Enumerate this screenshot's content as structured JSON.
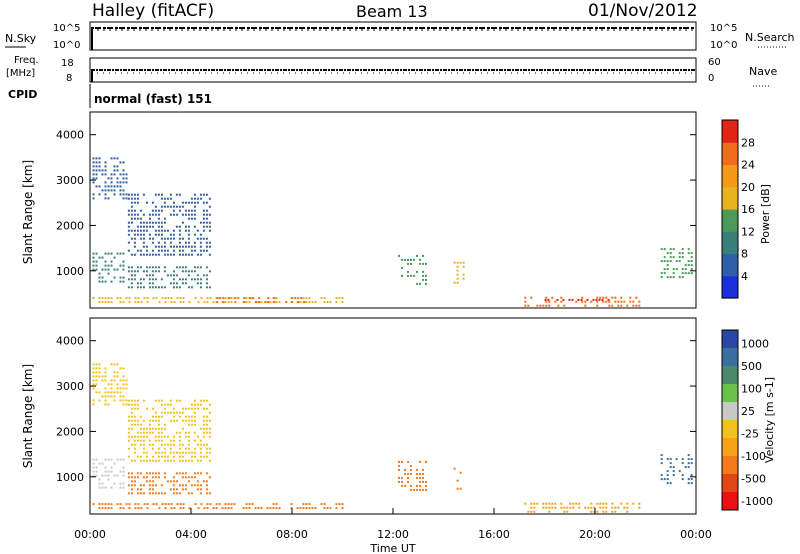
{
  "header": {
    "station": "Halley (fitACF)",
    "beam": "Beam 13",
    "date": "01/Nov/2012"
  },
  "status_panels": {
    "nsky_label": "N.Sky",
    "nsearch_label": "N.Search",
    "nsky_ticks": [
      "10^5",
      "10^0"
    ],
    "nsearch_ticks": [
      "10^5",
      "10^0"
    ],
    "freq_label_1": "Freq.",
    "freq_label_2": "[MHz]",
    "freq_ticks": [
      "18",
      "8"
    ],
    "nave_label": "Nave",
    "nave_ticks": [
      "60",
      "0"
    ],
    "cpid_label": "CPID",
    "cpid_value": "normal (fast) 151"
  },
  "colors": {
    "power_scale": [
      "#1a2fdc",
      "#2e5fa8",
      "#3a7f7a",
      "#4a9a5a",
      "#e8b21e",
      "#f39a1a",
      "#f06d1d",
      "#e02416"
    ],
    "velocity_scale": [
      "#2c46a6",
      "#3a6fa0",
      "#4a8a6a",
      "#6ac24a",
      "#c8c8c8",
      "#f1c21c",
      "#f5a11a",
      "#f07a1c",
      "#e04717",
      "#e81010"
    ]
  },
  "chart_data": [
    {
      "type": "heatmap",
      "title": "",
      "xlabel": "",
      "ylabel": "Slant Range [km]",
      "xlim": [
        0,
        24
      ],
      "ylim": [
        180,
        4500
      ],
      "x_ticks": [],
      "y_ticks": [
        "1000",
        "2000",
        "3000",
        "4000"
      ],
      "y_tick_values": [
        1000,
        2000,
        3000,
        4000
      ],
      "colorbar": {
        "label": "Power [dB]",
        "ticks": [
          "4",
          "8",
          "12",
          "16",
          "20",
          "24",
          "28"
        ],
        "range": [
          0,
          32
        ]
      },
      "echo_regions": [
        {
          "x0": 0.1,
          "x1": 1.5,
          "y0": 2600,
          "y1": 3500,
          "value": 6
        },
        {
          "x0": 0.1,
          "x1": 1.4,
          "y0": 700,
          "y1": 1400,
          "value": 8
        },
        {
          "x0": 1.5,
          "x1": 4.8,
          "y0": 1300,
          "y1": 2700,
          "value": 7
        },
        {
          "x0": 1.5,
          "x1": 4.8,
          "y0": 600,
          "y1": 1100,
          "value": 10
        },
        {
          "x0": 0.1,
          "x1": 10.0,
          "y0": 250,
          "y1": 420,
          "value": 18
        },
        {
          "x0": 5.0,
          "x1": 8.5,
          "y0": 250,
          "y1": 420,
          "value": 24
        },
        {
          "x0": 12.2,
          "x1": 13.3,
          "y0": 700,
          "y1": 1350,
          "value": 14
        },
        {
          "x0": 14.4,
          "x1": 14.8,
          "y0": 700,
          "y1": 1200,
          "value": 18
        },
        {
          "x0": 17.2,
          "x1": 21.8,
          "y0": 250,
          "y1": 430,
          "value": 26
        },
        {
          "x0": 18.0,
          "x1": 20.8,
          "y0": 300,
          "y1": 380,
          "value": 30
        },
        {
          "x0": 22.6,
          "x1": 23.9,
          "y0": 800,
          "y1": 1500,
          "value": 12
        }
      ]
    },
    {
      "type": "heatmap",
      "title": "",
      "xlabel": "Time UT",
      "ylabel": "Slant Range [km]",
      "xlim": [
        0,
        24
      ],
      "ylim": [
        180,
        4500
      ],
      "x_ticks": [
        "00:00",
        "04:00",
        "08:00",
        "12:00",
        "16:00",
        "20:00",
        "00:00"
      ],
      "x_tick_values": [
        0,
        4,
        8,
        12,
        16,
        20,
        24
      ],
      "y_ticks": [
        "1000",
        "2000",
        "3000",
        "4000"
      ],
      "y_tick_values": [
        1000,
        2000,
        3000,
        4000
      ],
      "colorbar": {
        "label": "Velocity [m s-1]",
        "ticks": [
          "1000",
          "500",
          "100",
          "25",
          "-25",
          "-100",
          "-500",
          "-1000"
        ]
      },
      "echo_regions": [
        {
          "x0": 0.1,
          "x1": 1.5,
          "y0": 2600,
          "y1": 3500,
          "value": 0
        },
        {
          "x0": 0.1,
          "x1": 1.4,
          "y0": 700,
          "y1": 1400,
          "value": 80
        },
        {
          "x0": 1.5,
          "x1": 4.8,
          "y0": 1300,
          "y1": 2700,
          "value": 0
        },
        {
          "x0": 1.5,
          "x1": 4.8,
          "y0": 600,
          "y1": 1100,
          "value": -150
        },
        {
          "x0": 0.1,
          "x1": 10.0,
          "y0": 250,
          "y1": 420,
          "value": -120
        },
        {
          "x0": 12.2,
          "x1": 13.3,
          "y0": 700,
          "y1": 1350,
          "value": -300
        },
        {
          "x0": 14.4,
          "x1": 14.8,
          "y0": 700,
          "y1": 1200,
          "value": -200
        },
        {
          "x0": 17.2,
          "x1": 21.8,
          "y0": 250,
          "y1": 430,
          "value": -60
        },
        {
          "x0": 22.6,
          "x1": 23.9,
          "y0": 800,
          "y1": 1500,
          "value": 600
        }
      ]
    }
  ]
}
